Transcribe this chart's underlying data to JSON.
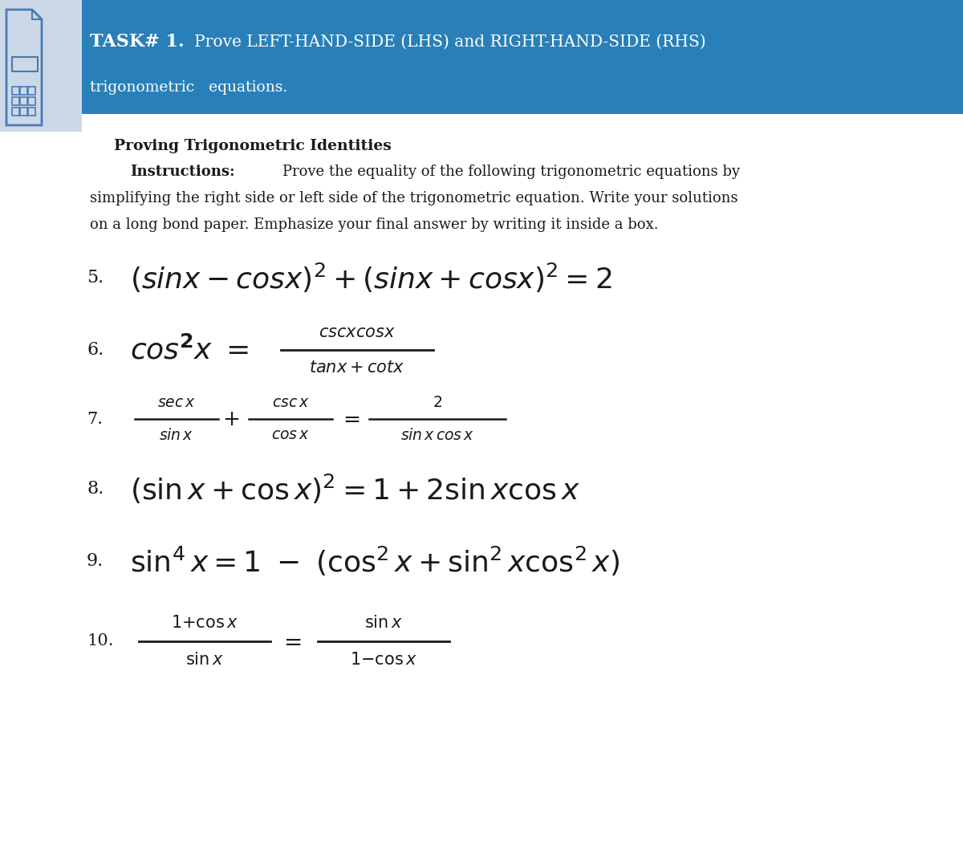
{
  "bg_color": "#ffffff",
  "header_bg": "#2980b9",
  "header_text_bold": "TASK# 1.",
  "header_text_normal": " Prove LEFT-HAND-SIDE (LHS) and RIGHT-HAND-SIDE (RHS)",
  "header_text_line2": "trigonometric   equations.",
  "header_text_color": "#ffffff",
  "section_title": "Proving Trigonometric Identities",
  "text_color": "#1a1a1a",
  "icon_color": "#4a7ab5",
  "icon_bg": "#ccd8e8",
  "fig_width": 12.0,
  "fig_height": 10.64,
  "dpi": 100
}
